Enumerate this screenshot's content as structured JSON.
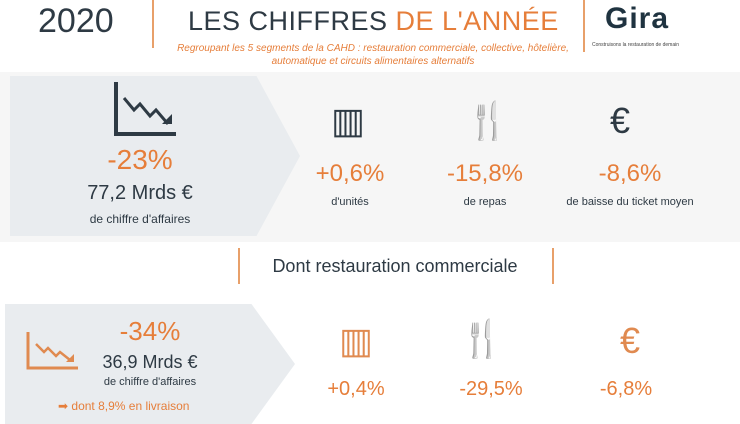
{
  "header": {
    "year": "2020",
    "title_main": "LES CHIFFRES ",
    "title_accent": "DE L'ANNÉE",
    "subtitle": "Regroupant les 5 segments de la CAHD : restauration commerciale, collective, hôtelière, automatique et circuits alimentaires alternatifs",
    "logo": "Gira",
    "tagline": "Construisons la restauration de demain"
  },
  "total": {
    "change": "-23%",
    "amount": "77,2 Mrds €",
    "amount_label": "de chiffre d'affaires",
    "stats": [
      {
        "icon": "storefront-icon",
        "value": "+0,6%",
        "label": "d'unités"
      },
      {
        "icon": "fork-knife-icon",
        "value": "-15,8%",
        "label": "de repas"
      },
      {
        "icon": "euro-icon",
        "value": "-8,6%",
        "label": "de baisse du ticket moyen"
      }
    ]
  },
  "section_title": "Dont restauration commerciale",
  "commercial": {
    "change": "-34%",
    "amount": "36,9 Mrds €",
    "amount_label": "de chiffre d'affaires",
    "delivery": "dont 8,9% en livraison",
    "stats": [
      {
        "icon": "storefront-icon",
        "value": "+0,4%"
      },
      {
        "icon": "fork-knife-icon",
        "value": "-29,5%"
      },
      {
        "icon": "euro-icon",
        "value": "-6,8%"
      }
    ]
  },
  "colors": {
    "accent": "#e67e3a",
    "dark": "#2e3a44"
  }
}
